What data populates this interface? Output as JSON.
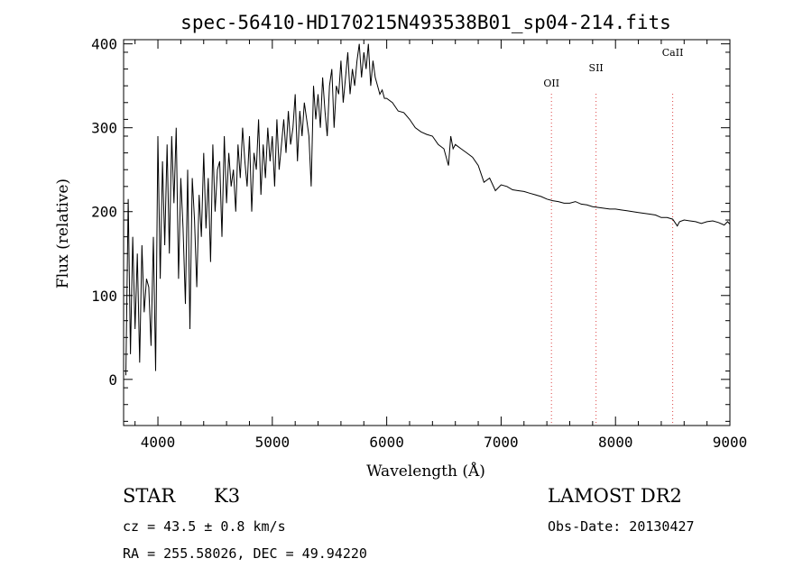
{
  "chart_data": {
    "type": "line",
    "title": "spec-56410-HD170215N493538B01_sp04-214.fits",
    "xlabel": "Wavelength (Å)",
    "ylabel": "Flux (relative)",
    "xlim": [
      3700,
      9000
    ],
    "ylim": [
      -55,
      405
    ],
    "x_ticks": [
      4000,
      5000,
      6000,
      7000,
      8000,
      9000
    ],
    "y_ticks": [
      0,
      100,
      200,
      300,
      400
    ],
    "grid": false,
    "spectral_lines": [
      {
        "label": "OII",
        "x": 7440
      },
      {
        "label": "SII",
        "x": 7830
      },
      {
        "label": "CaII",
        "x": 8500
      }
    ],
    "series": [
      {
        "x": [
          3720,
          3740,
          3760,
          3780,
          3800,
          3820,
          3840,
          3860,
          3880,
          3900,
          3920,
          3940,
          3960,
          3980,
          4000,
          4020,
          4040,
          4060,
          4080,
          4100,
          4120,
          4140,
          4160,
          4180,
          4200,
          4220,
          4240,
          4260,
          4280,
          4300,
          4320,
          4340,
          4360,
          4380,
          4400,
          4420,
          4440,
          4460,
          4480,
          4500,
          4520,
          4540,
          4560,
          4580,
          4600,
          4620,
          4640,
          4660,
          4680,
          4700,
          4720,
          4740,
          4760,
          4780,
          4800,
          4820,
          4840,
          4860,
          4880,
          4900,
          4920,
          4940,
          4960,
          4980,
          5000,
          5020,
          5040,
          5060,
          5080,
          5100,
          5120,
          5140,
          5160,
          5180,
          5200,
          5220,
          5240,
          5260,
          5280,
          5300,
          5320,
          5340,
          5360,
          5380,
          5400,
          5420,
          5440,
          5460,
          5480,
          5500,
          5520,
          5540,
          5560,
          5580,
          5600,
          5620,
          5640,
          5660,
          5680,
          5700,
          5720,
          5740,
          5760,
          5780,
          5800,
          5820,
          5840,
          5860,
          5880,
          5900,
          5920,
          5940,
          5960,
          5980,
          6000,
          6050,
          6100,
          6150,
          6200,
          6250,
          6300,
          6350,
          6400,
          6450,
          6500,
          6540,
          6560,
          6580,
          6600,
          6650,
          6700,
          6750,
          6800,
          6850,
          6900,
          6950,
          7000,
          7050,
          7100,
          7150,
          7200,
          7250,
          7300,
          7350,
          7400,
          7450,
          7500,
          7550,
          7600,
          7650,
          7700,
          7750,
          7800,
          7850,
          7900,
          7950,
          8000,
          8050,
          8100,
          8150,
          8200,
          8250,
          8300,
          8350,
          8400,
          8450,
          8500,
          8540,
          8560,
          8600,
          8650,
          8700,
          8750,
          8800,
          8850,
          8900,
          8950,
          8980,
          9000
        ],
        "y": [
          5,
          215,
          30,
          170,
          60,
          150,
          20,
          160,
          80,
          120,
          110,
          40,
          170,
          10,
          290,
          120,
          260,
          160,
          280,
          150,
          290,
          210,
          300,
          120,
          240,
          180,
          90,
          250,
          60,
          240,
          190,
          110,
          220,
          170,
          270,
          180,
          240,
          140,
          280,
          200,
          250,
          260,
          170,
          290,
          210,
          270,
          230,
          250,
          200,
          280,
          240,
          300,
          260,
          230,
          290,
          200,
          270,
          250,
          310,
          220,
          280,
          240,
          300,
          260,
          290,
          230,
          310,
          250,
          280,
          310,
          270,
          320,
          280,
          300,
          340,
          260,
          320,
          290,
          330,
          310,
          290,
          230,
          350,
          310,
          340,
          300,
          360,
          320,
          290,
          350,
          370,
          300,
          350,
          340,
          380,
          330,
          360,
          390,
          340,
          370,
          350,
          380,
          400,
          360,
          390,
          370,
          400,
          350,
          380,
          360,
          350,
          340,
          345,
          335,
          335,
          330,
          320,
          318,
          310,
          300,
          295,
          292,
          290,
          280,
          275,
          255,
          290,
          275,
          280,
          275,
          270,
          265,
          255,
          235,
          240,
          225,
          232,
          230,
          226,
          225,
          224,
          222,
          220,
          218,
          215,
          213,
          212,
          210,
          210,
          212,
          209,
          208,
          206,
          205,
          204,
          203,
          203,
          202,
          201,
          200,
          199,
          198,
          197,
          196,
          193,
          193,
          191,
          183,
          188,
          190,
          189,
          188,
          186,
          188,
          189,
          187,
          184,
          188,
          185
        ]
      }
    ]
  },
  "footer": {
    "object_type": "STAR",
    "subclass": "K3",
    "cz": "cz = 43.5 ± 0.8 km/s",
    "survey": "LAMOST DR2",
    "obs_date": "Obs-Date: 20130427",
    "coords": "RA = 255.58026, DEC =  49.94220"
  }
}
